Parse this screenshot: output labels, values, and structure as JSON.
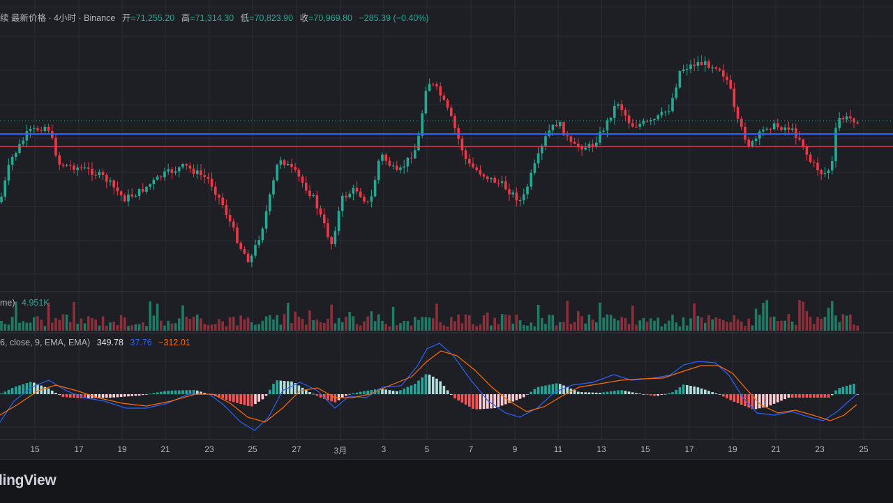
{
  "header": {
    "title": "续 最新价格 · 4小时 · Binance",
    "open_label": "开",
    "open": "=71,255.20",
    "high_label": "高",
    "high": "=71,314.30",
    "low_label": "低",
    "low": "=70,823.90",
    "close_label": "收",
    "close": "=70,969.80",
    "change": "−285.39 (−0.40%)"
  },
  "volume_legend": {
    "label": "me)",
    "value": "4.951K"
  },
  "macd_legend": {
    "label": "6, close, 9, EMA, EMA)",
    "histogram": "349.78",
    "macd": "37.76",
    "signal": "−312.01"
  },
  "x_axis": {
    "ticks": [
      "15",
      "17",
      "19",
      "21",
      "23",
      "25",
      "27",
      "3月",
      "3",
      "5",
      "7",
      "9",
      "11",
      "13",
      "15",
      "17",
      "19",
      "21",
      "23",
      "25"
    ]
  },
  "brand": {
    "logo_text": "lingView"
  },
  "colors": {
    "up": "#22ab94",
    "down": "#f23645",
    "horizontal_line_blue": "#2962ff",
    "horizontal_line_red": "#f23645",
    "macd_line": "#2962ff",
    "signal_line": "#ff6d00"
  }
}
